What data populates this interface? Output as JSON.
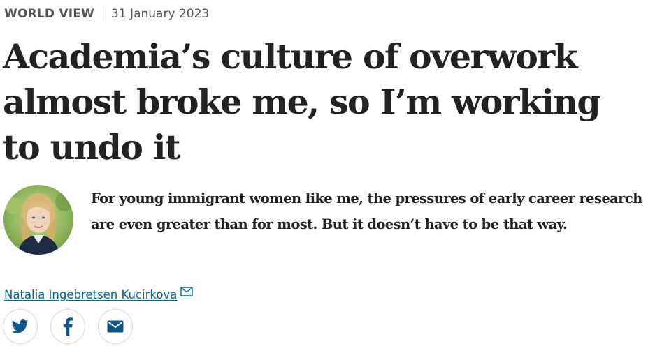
{
  "article": {
    "section": "WORLD VIEW",
    "date": "31 January 2023",
    "headline": "Academia’s culture of overwork almost broke me, so I’m working to undo it",
    "standfirst": "For young immigrant women like me, the pressures of early career research are even greater than for most. But it doesn’t have to be that way."
  },
  "author": {
    "name": "Natalia Ingebretsen Kucirkova",
    "mail_icon": "envelope-icon"
  },
  "share": {
    "icons": [
      "twitter-icon",
      "facebook-icon",
      "email-icon"
    ]
  },
  "colors": {
    "link": "#006699",
    "text": "#222222",
    "meta": "#555555",
    "share_icon": "#0f5587",
    "button_border": "#d6d6d6"
  }
}
